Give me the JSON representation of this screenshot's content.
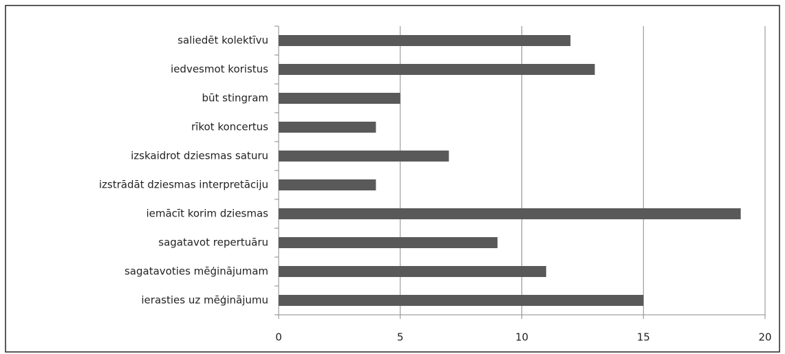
{
  "chart_data": {
    "type": "barh",
    "categories": [
      "saliedēt kolektīvu",
      "iedvesmot koristus",
      "būt stingram",
      "rīkot koncertus",
      "izskaidrot dziesmas saturu",
      "izstrādāt dziesmas interpretāciju",
      "iemācīt korim dziesmas",
      "sagatavot repertuāru",
      "sagatavoties mēģinājumam",
      "ierasties uz mēģinājumu"
    ],
    "values": [
      12,
      13,
      5,
      4,
      7,
      4,
      19,
      9,
      11,
      15
    ],
    "color": "#595959",
    "xlim": [
      0,
      20
    ],
    "xticks": [
      0,
      5,
      10,
      15,
      20
    ],
    "grid": true
  }
}
